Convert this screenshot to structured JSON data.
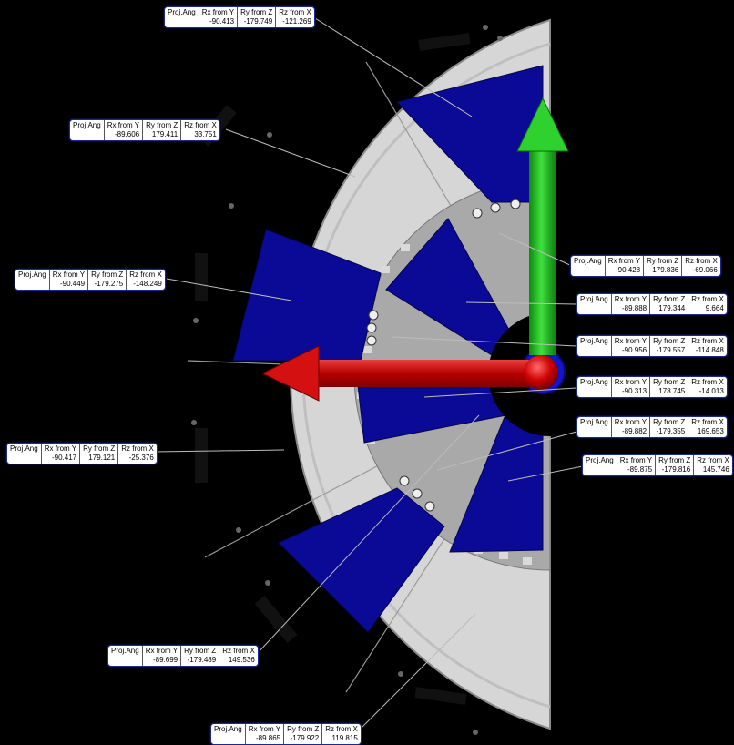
{
  "headers": {
    "proj": "Proj.Ang",
    "rx": "Rx from Y",
    "ry": "Ry from Z",
    "rz": "Rz from X"
  },
  "callouts": [
    {
      "rx": "-90.413",
      "ry": "-179.749",
      "rz": "-121.269"
    },
    {
      "rx": "-89.606",
      "ry": "179.411",
      "rz": "33.751"
    },
    {
      "rx": "-90.449",
      "ry": "-179.275",
      "rz": "-148.249"
    },
    {
      "rx": "-90.417",
      "ry": "179.121",
      "rz": "-25.376"
    },
    {
      "rx": "-89.699",
      "ry": "-179.489",
      "rz": "149.536"
    },
    {
      "rx": "-89.865",
      "ry": "-179.922",
      "rz": "119.815"
    },
    {
      "rx": "-90.428",
      "ry": "179.836",
      "rz": "-69.066"
    },
    {
      "rx": "-89.888",
      "ry": "179.344",
      "rz": "9.664"
    },
    {
      "rx": "-90.956",
      "ry": "-179.557",
      "rz": "-114.848"
    },
    {
      "rx": "-90.313",
      "ry": "178.745",
      "rz": "-14.013"
    },
    {
      "rx": "-89.882",
      "ry": "-179.355",
      "rz": "169.653"
    },
    {
      "rx": "-89.875",
      "ry": "-179.816",
      "rz": "145.746"
    }
  ],
  "colors": {
    "background": "#000000",
    "plate": "#d9d9d9",
    "inner_ring": "#a8a8a8",
    "blue_segment": "#0a0a96",
    "x_axis_arrow": "#cc0000",
    "y_axis_arrow": "#1fbf1f",
    "origin_ring": "#1515c8"
  }
}
